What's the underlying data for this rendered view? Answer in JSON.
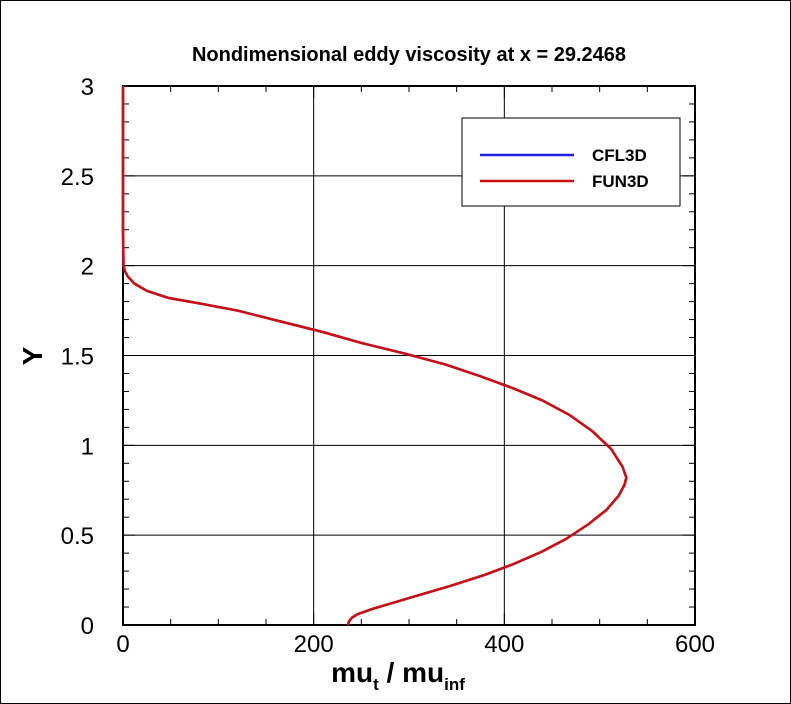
{
  "chart_data": {
    "type": "line",
    "title": "Nondimensional eddy viscosity at x = 29.2468",
    "xlabel": {
      "main": "mu",
      "sub1": "t",
      "sep": " / mu",
      "sub2": "inf"
    },
    "ylabel": "Y",
    "xlim": [
      0,
      600
    ],
    "ylim": [
      0,
      3
    ],
    "xticks": [
      0,
      200,
      400,
      600
    ],
    "xtick_labels": [
      "0",
      "200",
      "400",
      "600"
    ],
    "yticks": [
      0,
      0.5,
      1,
      1.5,
      2,
      2.5,
      3
    ],
    "ytick_labels": [
      "0",
      "0.5",
      "1",
      "1.5",
      "2",
      "2.5",
      "3"
    ],
    "grid": true,
    "legend_position": "top-right",
    "series": [
      {
        "name": "CFL3D",
        "color": "#2020e0",
        "points": [
          [
            236,
            0.0
          ],
          [
            237,
            0.02
          ],
          [
            240,
            0.04
          ],
          [
            246,
            0.06
          ],
          [
            262,
            0.09
          ],
          [
            300,
            0.15
          ],
          [
            345,
            0.22
          ],
          [
            380,
            0.28
          ],
          [
            410,
            0.34
          ],
          [
            440,
            0.41
          ],
          [
            465,
            0.48
          ],
          [
            488,
            0.56
          ],
          [
            507,
            0.64
          ],
          [
            520,
            0.72
          ],
          [
            526,
            0.78
          ],
          [
            528,
            0.82
          ],
          [
            524,
            0.88
          ],
          [
            512,
            0.98
          ],
          [
            492,
            1.08
          ],
          [
            468,
            1.17
          ],
          [
            440,
            1.25
          ],
          [
            408,
            1.32
          ],
          [
            372,
            1.39
          ],
          [
            338,
            1.45
          ],
          [
            296,
            1.51
          ],
          [
            250,
            1.57
          ],
          [
            210,
            1.63
          ],
          [
            165,
            1.69
          ],
          [
            120,
            1.75
          ],
          [
            80,
            1.79
          ],
          [
            48,
            1.82
          ],
          [
            25,
            1.86
          ],
          [
            12,
            1.9
          ],
          [
            5,
            1.94
          ],
          [
            2,
            1.97
          ],
          [
            0.5,
            2.0
          ],
          [
            0,
            2.2
          ],
          [
            0,
            2.6
          ],
          [
            0,
            3.0
          ]
        ]
      },
      {
        "name": "FUN3D",
        "color": "#cc1010",
        "points": [
          [
            236,
            0.0
          ],
          [
            237,
            0.02
          ],
          [
            240,
            0.04
          ],
          [
            246,
            0.06
          ],
          [
            262,
            0.09
          ],
          [
            300,
            0.15
          ],
          [
            345,
            0.22
          ],
          [
            380,
            0.28
          ],
          [
            410,
            0.34
          ],
          [
            440,
            0.41
          ],
          [
            465,
            0.48
          ],
          [
            488,
            0.56
          ],
          [
            507,
            0.64
          ],
          [
            520,
            0.72
          ],
          [
            526,
            0.78
          ],
          [
            528,
            0.82
          ],
          [
            524,
            0.88
          ],
          [
            512,
            0.98
          ],
          [
            492,
            1.08
          ],
          [
            468,
            1.17
          ],
          [
            440,
            1.25
          ],
          [
            408,
            1.32
          ],
          [
            372,
            1.39
          ],
          [
            338,
            1.45
          ],
          [
            296,
            1.51
          ],
          [
            250,
            1.57
          ],
          [
            210,
            1.63
          ],
          [
            165,
            1.69
          ],
          [
            120,
            1.75
          ],
          [
            80,
            1.79
          ],
          [
            48,
            1.82
          ],
          [
            25,
            1.86
          ],
          [
            12,
            1.9
          ],
          [
            5,
            1.94
          ],
          [
            2,
            1.97
          ],
          [
            0.5,
            2.0
          ],
          [
            0,
            2.2
          ],
          [
            0,
            2.6
          ],
          [
            0,
            3.0
          ]
        ]
      }
    ]
  }
}
